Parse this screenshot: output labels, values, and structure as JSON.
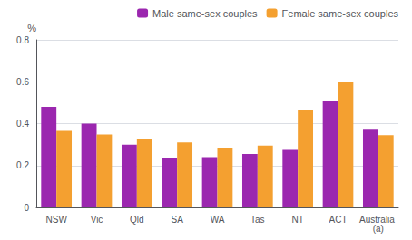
{
  "chart_data": {
    "type": "bar",
    "categories": [
      "NSW",
      "Vic",
      "Qld",
      "SA",
      "WA",
      "Tas",
      "NT",
      "ACT",
      "Australia (a)"
    ],
    "series": [
      {
        "name": "Male same-sex couples",
        "color": "#9B27AF",
        "values": [
          0.48,
          0.4,
          0.3,
          0.235,
          0.24,
          0.255,
          0.275,
          0.51,
          0.375
        ]
      },
      {
        "name": "Female same-sex couples",
        "color": "#F4A030",
        "values": [
          0.365,
          0.348,
          0.325,
          0.31,
          0.285,
          0.295,
          0.465,
          0.6,
          0.345
        ]
      }
    ],
    "ylabel": "%",
    "ylim": [
      0,
      0.8
    ],
    "yticks": [
      0,
      0.2,
      0.4,
      0.6,
      0.8
    ],
    "grid": true,
    "legend": "upper right"
  }
}
